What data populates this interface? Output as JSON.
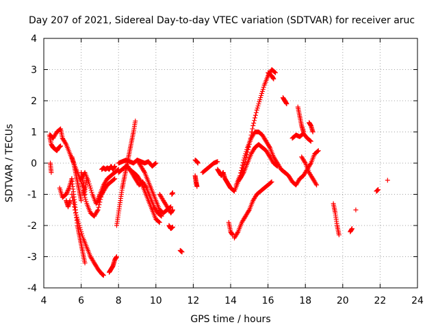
{
  "chart_data": {
    "type": "scatter",
    "title": "Day 207 of 2021, Sidereal Day-to-day VTEC variation (SDTVAR) for receiver aruc",
    "xlabel": "GPS time / hours",
    "ylabel": "SDTVAR / TECUs",
    "xlim": [
      4,
      24
    ],
    "ylim": [
      -4,
      4
    ],
    "xticks": [
      "4",
      "6",
      "8",
      "10",
      "12",
      "14",
      "16",
      "18",
      "20",
      "22",
      "24"
    ],
    "yticks": [
      "4",
      "3",
      "2",
      "1",
      "0",
      "-1",
      "-2",
      "-3",
      "-4"
    ],
    "grid": true,
    "marker": "+",
    "color": "#ff0000",
    "series": [
      {
        "name": "s1",
        "x": [
          4.35,
          4.5,
          4.7,
          4.9,
          5.0
        ],
        "y": [
          0.9,
          0.8,
          1.0,
          1.1,
          0.8
        ]
      },
      {
        "name": "s2",
        "x": [
          4.3,
          4.4,
          4.5,
          4.6,
          4.7,
          4.8,
          4.9
        ],
        "y": [
          0.9,
          0.6,
          0.5,
          0.45,
          0.4,
          0.5,
          0.55
        ]
      },
      {
        "name": "s3",
        "x": [
          4.35,
          4.4
        ],
        "y": [
          0.0,
          -0.3
        ]
      },
      {
        "name": "s4",
        "x": [
          4.85,
          5.0,
          5.2,
          5.35,
          5.5
        ],
        "y": [
          -0.8,
          -1.1,
          -1.0,
          -0.8,
          -0.5
        ]
      },
      {
        "name": "s5",
        "x": [
          5.0,
          5.2,
          5.4,
          5.6,
          5.8,
          6.0,
          6.2
        ],
        "y": [
          0.8,
          0.6,
          0.3,
          0.0,
          -0.3,
          -0.6,
          -1.0
        ]
      },
      {
        "name": "s6",
        "x": [
          5.2,
          5.3,
          5.4
        ],
        "y": [
          -1.2,
          -1.4,
          -1.2
        ]
      },
      {
        "name": "s7",
        "x": [
          5.5,
          5.6,
          5.7,
          5.8,
          5.9,
          6.0,
          6.1,
          6.2
        ],
        "y": [
          -0.5,
          -1.0,
          -1.5,
          -2.0,
          -2.3,
          -2.6,
          -2.9,
          -3.2
        ]
      },
      {
        "name": "s8",
        "x": [
          5.5,
          5.6,
          5.7,
          5.8,
          5.9,
          6.0
        ],
        "y": [
          0.2,
          0.0,
          -0.3,
          -0.6,
          -0.9,
          -1.2
        ]
      },
      {
        "name": "s9",
        "x": [
          5.5,
          5.7,
          5.9,
          6.1,
          6.3,
          6.5,
          6.7,
          6.9,
          7.1,
          7.2
        ],
        "y": [
          -1.0,
          -1.6,
          -2.0,
          -2.4,
          -2.7,
          -3.0,
          -3.2,
          -3.4,
          -3.55,
          -3.6
        ]
      },
      {
        "name": "s10",
        "x": [
          6.0,
          6.2,
          6.4,
          6.6,
          6.8,
          7.0,
          7.2,
          7.4,
          7.6,
          7.8
        ],
        "y": [
          -0.5,
          -0.3,
          -0.6,
          -1.0,
          -1.3,
          -1.1,
          -0.9,
          -0.7,
          -0.6,
          -0.5
        ]
      },
      {
        "name": "s11",
        "x": [
          6.1,
          6.3,
          6.5,
          6.7,
          6.9,
          7.1,
          7.3
        ],
        "y": [
          -0.9,
          -1.3,
          -1.6,
          -1.7,
          -1.5,
          -1.0,
          -0.7
        ]
      },
      {
        "name": "s12",
        "x": [
          6.0,
          6.1,
          6.2,
          6.3
        ],
        "y": [
          -0.3,
          -0.6,
          -0.9,
          -0.5
        ]
      },
      {
        "name": "s13",
        "x": [
          6.9,
          7.0,
          7.2,
          7.4,
          7.6,
          7.8,
          8.0
        ],
        "y": [
          -1.2,
          -1.0,
          -0.7,
          -0.5,
          -0.4,
          -0.3,
          -0.2
        ]
      },
      {
        "name": "s14",
        "x": [
          7.1,
          7.2,
          7.3,
          7.4,
          7.5,
          7.6,
          7.7,
          7.8
        ],
        "y": [
          -0.2,
          -0.15,
          -0.2,
          -0.15,
          -0.2,
          -0.1,
          -0.2,
          -0.1
        ]
      },
      {
        "name": "s15",
        "x": [
          7.5,
          7.6,
          7.7,
          7.8,
          7.9
        ],
        "y": [
          -3.5,
          -3.4,
          -3.3,
          -3.1,
          -3.0
        ]
      },
      {
        "name": "s16",
        "x": [
          7.9,
          8.0,
          8.1,
          8.2,
          8.3,
          8.4,
          8.5,
          8.6,
          8.7,
          8.8,
          8.9
        ],
        "y": [
          -2.0,
          -1.6,
          -1.2,
          -0.8,
          -0.5,
          -0.2,
          0.1,
          0.4,
          0.7,
          1.0,
          1.35
        ]
      },
      {
        "name": "s17",
        "x": [
          8.0,
          8.2,
          8.4,
          8.6,
          8.8,
          9.0,
          9.2,
          9.4,
          9.6,
          9.8,
          10.0
        ],
        "y": [
          0.0,
          0.05,
          0.1,
          0.05,
          0.0,
          0.1,
          0.05,
          0.0,
          0.05,
          -0.1,
          0.0
        ]
      },
      {
        "name": "s18",
        "x": [
          8.0,
          8.2,
          8.4,
          8.6,
          8.8,
          9.0,
          9.2,
          9.4,
          9.6,
          9.8,
          10.0,
          10.2
        ],
        "y": [
          -0.3,
          -0.2,
          -0.1,
          -0.2,
          -0.3,
          -0.4,
          -0.6,
          -0.9,
          -1.2,
          -1.5,
          -1.8,
          -1.9
        ]
      },
      {
        "name": "s19",
        "x": [
          8.5,
          8.7,
          8.9,
          9.1,
          9.3,
          9.5,
          9.7,
          9.9,
          10.1,
          10.3
        ],
        "y": [
          -0.1,
          -0.3,
          -0.5,
          -0.7,
          -0.6,
          -0.8,
          -1.1,
          -1.4,
          -1.6,
          -1.7
        ]
      },
      {
        "name": "s20",
        "x": [
          9.0,
          9.2,
          9.4,
          9.6,
          9.8,
          10.0,
          10.2,
          10.4,
          10.6,
          10.8
        ],
        "y": [
          0.1,
          -0.1,
          -0.3,
          -0.6,
          -0.9,
          -1.2,
          -1.5,
          -1.6,
          -1.5,
          -1.4
        ]
      },
      {
        "name": "s21",
        "x": [
          10.2,
          10.4,
          10.6,
          10.8,
          10.9
        ],
        "y": [
          -1.0,
          -1.2,
          -1.4,
          -1.6,
          -1.5
        ]
      },
      {
        "name": "s22",
        "x": [
          10.7,
          10.8,
          10.9
        ],
        "y": [
          -2.0,
          -2.1,
          -2.05
        ]
      },
      {
        "name": "s23",
        "x": [
          10.85,
          10.9
        ],
        "y": [
          -1.0,
          -0.95
        ]
      },
      {
        "name": "s24",
        "x": [
          11.3,
          11.4
        ],
        "y": [
          -2.8,
          -2.85
        ]
      },
      {
        "name": "s25",
        "x": [
          12.1,
          12.2,
          12.25
        ],
        "y": [
          0.1,
          0.05,
          0.0
        ]
      },
      {
        "name": "s26",
        "x": [
          12.1,
          12.15,
          12.2
        ],
        "y": [
          -0.4,
          -0.6,
          -0.75
        ]
      },
      {
        "name": "s27",
        "x": [
          12.5,
          12.7,
          12.9,
          13.1,
          13.3
        ],
        "y": [
          -0.3,
          -0.2,
          -0.1,
          0.0,
          0.05
        ]
      },
      {
        "name": "s28",
        "x": [
          13.3,
          13.4,
          13.5,
          13.6
        ],
        "y": [
          -0.2,
          -0.3,
          -0.4,
          -0.3
        ]
      },
      {
        "name": "s29",
        "x": [
          13.6,
          13.7,
          13.8,
          13.9,
          14.0,
          14.2,
          14.4,
          14.6
        ],
        "y": [
          -0.3,
          -0.5,
          -0.6,
          -0.7,
          -0.8,
          -0.9,
          -0.6,
          -0.4
        ]
      },
      {
        "name": "s30",
        "x": [
          13.9,
          14.0,
          14.1
        ],
        "y": [
          -1.9,
          -2.2,
          -2.3
        ]
      },
      {
        "name": "s31",
        "x": [
          14.2,
          14.4,
          14.6,
          14.8,
          15.0,
          15.2,
          15.4,
          15.6,
          15.8,
          16.0,
          16.2
        ],
        "y": [
          -2.4,
          -2.2,
          -1.9,
          -1.7,
          -1.5,
          -1.2,
          -1.0,
          -0.9,
          -0.8,
          -0.7,
          -0.6
        ]
      },
      {
        "name": "s32",
        "x": [
          14.6,
          14.8,
          15.0,
          15.2,
          15.4,
          15.6,
          15.8,
          16.0,
          16.2,
          16.4
        ],
        "y": [
          -0.3,
          0.1,
          0.6,
          1.2,
          1.7,
          2.1,
          2.5,
          2.8,
          3.0,
          2.9
        ]
      },
      {
        "name": "s33",
        "x": [
          14.3,
          14.5,
          14.7,
          14.9,
          15.1,
          15.3,
          15.5,
          15.7,
          15.9,
          16.1,
          16.3,
          16.5,
          16.7,
          16.9
        ],
        "y": [
          -0.7,
          -0.4,
          0.1,
          0.5,
          0.8,
          1.0,
          1.0,
          0.9,
          0.7,
          0.5,
          0.2,
          0.0,
          -0.2,
          -0.3
        ]
      },
      {
        "name": "s34",
        "x": [
          14.5,
          14.7,
          14.9,
          15.1,
          15.3,
          15.5,
          15.7,
          15.9,
          16.1,
          16.3,
          16.5
        ],
        "y": [
          -0.5,
          -0.3,
          0.0,
          0.3,
          0.5,
          0.6,
          0.5,
          0.4,
          0.2,
          0.0,
          -0.1
        ]
      },
      {
        "name": "s35",
        "x": [
          16.0,
          16.2,
          16.3
        ],
        "y": [
          2.9,
          2.8,
          2.7
        ]
      },
      {
        "name": "s36",
        "x": [
          16.8,
          16.9,
          17.0
        ],
        "y": [
          2.1,
          2.0,
          1.9
        ]
      },
      {
        "name": "s37",
        "x": [
          16.9,
          17.1,
          17.3,
          17.5,
          17.7,
          17.9,
          18.1,
          18.3,
          18.5,
          18.7
        ],
        "y": [
          -0.3,
          -0.4,
          -0.6,
          -0.7,
          -0.5,
          -0.4,
          -0.2,
          0.0,
          0.3,
          0.4
        ]
      },
      {
        "name": "s38",
        "x": [
          17.3,
          17.5,
          17.7,
          17.9,
          18.1,
          18.3
        ],
        "y": [
          0.8,
          0.9,
          0.85,
          0.95,
          0.8,
          0.7
        ]
      },
      {
        "name": "s39",
        "x": [
          17.6,
          17.7,
          17.8,
          17.9
        ],
        "y": [
          1.8,
          1.5,
          1.2,
          1.0
        ]
      },
      {
        "name": "s40",
        "x": [
          17.8,
          18.0,
          18.2,
          18.4,
          18.6
        ],
        "y": [
          0.2,
          0.0,
          -0.3,
          -0.5,
          -0.7
        ]
      },
      {
        "name": "s41",
        "x": [
          18.2,
          18.3,
          18.4
        ],
        "y": [
          1.3,
          1.2,
          1.0
        ]
      },
      {
        "name": "s42",
        "x": [
          19.5,
          19.6,
          19.7,
          19.8
        ],
        "y": [
          -1.3,
          -1.6,
          -2.0,
          -2.3
        ]
      },
      {
        "name": "s43",
        "x": [
          20.4,
          20.5
        ],
        "y": [
          -2.2,
          -2.1
        ]
      },
      {
        "name": "s44",
        "x": [
          20.7
        ],
        "y": [
          -1.5
        ]
      },
      {
        "name": "s45",
        "x": [
          21.8,
          21.9
        ],
        "y": [
          -0.9,
          -0.85
        ]
      },
      {
        "name": "s46",
        "x": [
          22.4
        ],
        "y": [
          -0.55
        ]
      }
    ]
  }
}
